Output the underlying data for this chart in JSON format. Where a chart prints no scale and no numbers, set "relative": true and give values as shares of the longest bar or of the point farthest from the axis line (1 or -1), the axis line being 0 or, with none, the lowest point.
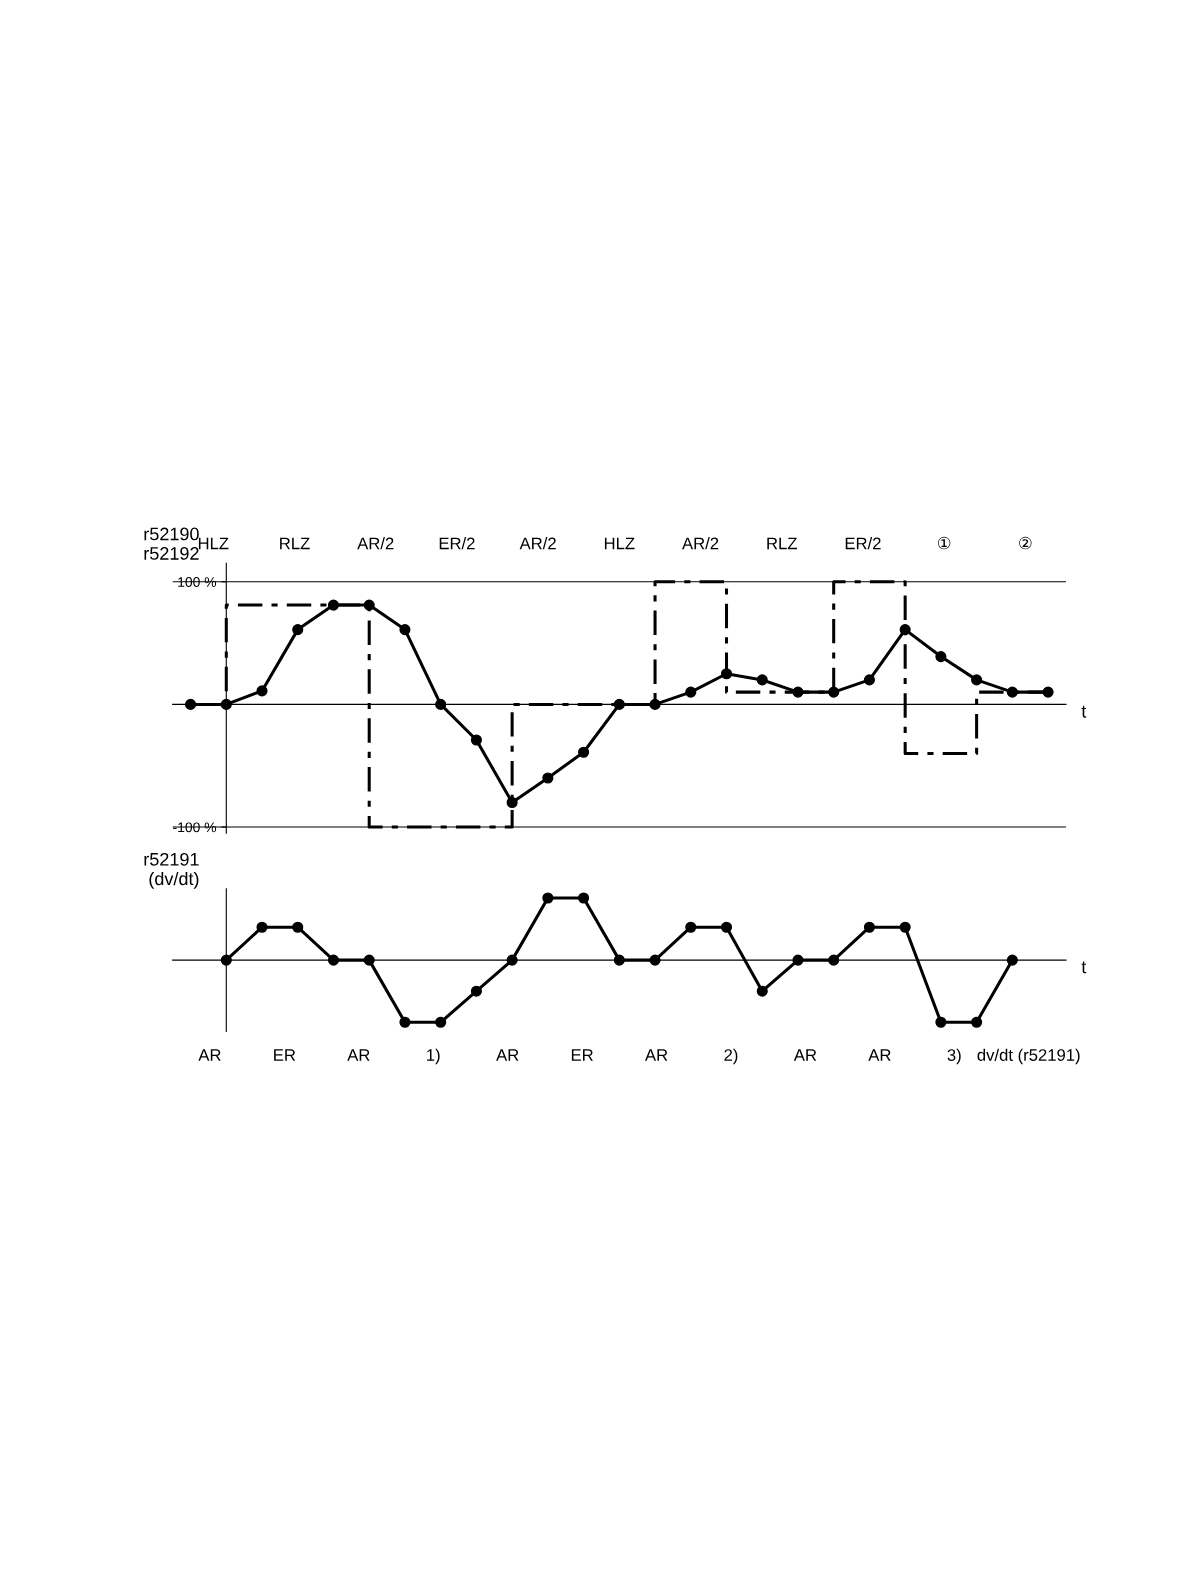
{
  "chart_data": [
    {
      "type": "line",
      "xlabel": "t",
      "ylabel": "r52190\nr52192",
      "categories": [
        null,
        null,
        null,
        null,
        null,
        null,
        null,
        null,
        null,
        null,
        null,
        null,
        null,
        null,
        null,
        null,
        null,
        null,
        null,
        null,
        null,
        null,
        null,
        null,
        null
      ],
      "series": [
        {
          "type": "step",
          "color": "#000000",
          "line_style": "dashed",
          "marker": "none",
          "values": [
            0,
            81,
            81,
            81,
            81,
            -100,
            -100,
            -100,
            -100,
            0,
            0,
            0,
            0,
            100,
            100,
            10,
            10,
            10,
            100,
            100,
            -40,
            -40,
            10,
            10,
            10
          ]
        },
        {
          "color": "#000000",
          "line_style": "solid",
          "marker": "circle",
          "values": [
            0,
            0,
            11,
            61,
            81,
            81,
            61,
            0,
            -29,
            -80,
            -60,
            -39,
            0,
            0,
            10,
            25,
            20,
            10,
            10,
            20,
            61,
            39,
            20,
            10,
            10
          ]
        }
      ],
      "ylim": [
        -105,
        115
      ],
      "yticks": [
        {
          "value": 100,
          "label": "100 %"
        },
        {
          "value": -100,
          "label": "-100 %"
        }
      ],
      "grid": "y",
      "tick_labels": "y",
      "annotations": [
        "HLZ",
        "RLZ",
        "AR/2",
        "ER/2",
        "AR/2",
        "HLZ",
        "AR/2",
        "RLZ",
        "ER/2",
        "①",
        "②"
      ]
    },
    {
      "type": "line",
      "xlabel": "t",
      "ylabel": "r52191\n(dv/dt)",
      "relative": true,
      "tick_labels": false,
      "categories": [
        null,
        null,
        null,
        null,
        null,
        null,
        null,
        null,
        null,
        null,
        null,
        null,
        null,
        null,
        null,
        null,
        null,
        null,
        null,
        null,
        null,
        null,
        null,
        null,
        null
      ],
      "series": [
        {
          "color": "#000000",
          "line_style": "solid",
          "marker": "circle",
          "values": [
            null,
            0,
            0.53,
            0.53,
            0,
            0,
            -1,
            -1,
            -0.5,
            0,
            1,
            1,
            0,
            0,
            0.53,
            0.53,
            -0.5,
            0,
            0,
            0.53,
            0.53,
            -1,
            -1,
            0,
            null
          ]
        }
      ],
      "annotations": [
        "AR",
        "ER",
        "AR",
        "1)",
        "AR",
        "ER",
        "AR",
        "2)",
        "AR",
        "AR",
        "3)",
        "dv/dt (r52191)"
      ]
    }
  ]
}
